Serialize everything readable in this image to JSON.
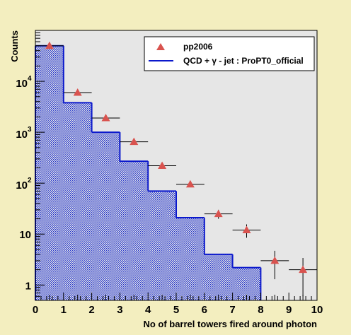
{
  "chart_data": {
    "type": "scatter",
    "xlabel": "No of barrel towers fired around photon",
    "ylabel": "Counts",
    "xlim": [
      0,
      10
    ],
    "ylim": [
      0.5,
      100000
    ],
    "yscale": "log",
    "grid": false,
    "legend_position": "top-right",
    "x_ticks": [
      "0",
      "1",
      "2",
      "3",
      "4",
      "5",
      "6",
      "7",
      "8",
      "9",
      "10"
    ],
    "y_ticks": [
      {
        "value": 1,
        "base": "1",
        "exp": ""
      },
      {
        "value": 10,
        "base": "10",
        "exp": ""
      },
      {
        "value": 100,
        "base": "10",
        "exp": "2"
      },
      {
        "value": 1000,
        "base": "10",
        "exp": "3"
      },
      {
        "value": 10000,
        "base": "10",
        "exp": "4"
      }
    ],
    "legend": {
      "data_label": "pp2006",
      "mc_label": "QCD + γ - jet : ProPT0_official"
    },
    "series": [
      {
        "name": "pp2006",
        "style": "markers-with-error-bars",
        "x": [
          0.5,
          1.5,
          2.5,
          3.5,
          4.5,
          5.5,
          6.5,
          7.5,
          8.5,
          9.5
        ],
        "y": [
          50000,
          6000,
          1900,
          650,
          220,
          95,
          25,
          12,
          3,
          2
        ],
        "x_err": [
          0.5,
          0.5,
          0.5,
          0.5,
          0.5,
          0.5,
          0.5,
          0.5,
          0.5,
          0.5
        ],
        "y_err_low": [
          220,
          77,
          44,
          25,
          15,
          10,
          5,
          3.5,
          1.7,
          1.4
        ],
        "y_err_high": [
          220,
          77,
          44,
          25,
          15,
          10,
          5,
          3.5,
          1.7,
          1.4
        ]
      },
      {
        "name": "QCD + γ - jet : ProPT0_official",
        "style": "filled-histogram",
        "bin_edges": [
          0,
          1,
          2,
          3,
          4,
          5,
          6,
          7,
          8,
          9,
          10
        ],
        "values": [
          50000,
          3800,
          1000,
          270,
          70,
          21,
          4,
          2.2,
          0,
          0
        ]
      }
    ]
  },
  "colors": {
    "page_background": "#f3eebf",
    "plot_background": "#e6e6e6",
    "histogram_line": "#0b18cc",
    "histogram_fill": "#1c2ecc",
    "marker": "#d9534f",
    "axis": "#000000"
  }
}
